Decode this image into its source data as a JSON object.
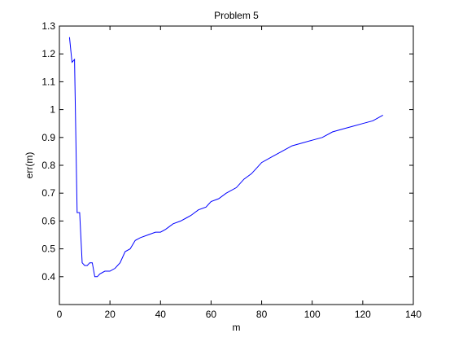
{
  "chart_data": {
    "type": "line",
    "title": "Problem 5",
    "xlabel": "m",
    "ylabel": "err(m)",
    "xlim": [
      0,
      140
    ],
    "ylim": [
      0.3,
      1.3
    ],
    "grid": false,
    "xticks": [
      0,
      20,
      40,
      60,
      80,
      100,
      120,
      140
    ],
    "yticks": [
      0.4,
      0.5,
      0.6,
      0.7,
      0.8,
      0.9,
      1,
      1.1,
      1.2,
      1.3
    ],
    "xtick_labels": [
      "0",
      "20",
      "40",
      "60",
      "80",
      "100",
      "120",
      "140"
    ],
    "ytick_labels": [
      "0.4",
      "0.5",
      "0.6",
      "0.7",
      "0.8",
      "0.9",
      "1",
      "1.1",
      "1.2",
      "1.3"
    ],
    "series": [
      {
        "color": "#0000ff",
        "x": [
          4,
          5,
          6,
          7,
          8,
          9,
          10,
          11,
          12,
          13,
          14,
          15,
          16,
          18,
          20,
          22,
          24,
          26,
          28,
          30,
          32,
          35,
          38,
          40,
          42,
          45,
          48,
          50,
          52,
          55,
          58,
          60,
          63,
          66,
          70,
          73,
          76,
          78,
          80,
          84,
          88,
          92,
          96,
          100,
          104,
          108,
          112,
          116,
          120,
          124,
          128
        ],
        "y": [
          1.26,
          1.17,
          1.18,
          0.63,
          0.63,
          0.45,
          0.44,
          0.44,
          0.45,
          0.45,
          0.4,
          0.4,
          0.41,
          0.42,
          0.42,
          0.43,
          0.45,
          0.49,
          0.5,
          0.53,
          0.54,
          0.55,
          0.56,
          0.56,
          0.57,
          0.59,
          0.6,
          0.61,
          0.62,
          0.64,
          0.65,
          0.67,
          0.68,
          0.7,
          0.72,
          0.75,
          0.77,
          0.79,
          0.81,
          0.83,
          0.85,
          0.87,
          0.88,
          0.89,
          0.9,
          0.92,
          0.93,
          0.94,
          0.95,
          0.96,
          0.98
        ]
      }
    ]
  }
}
